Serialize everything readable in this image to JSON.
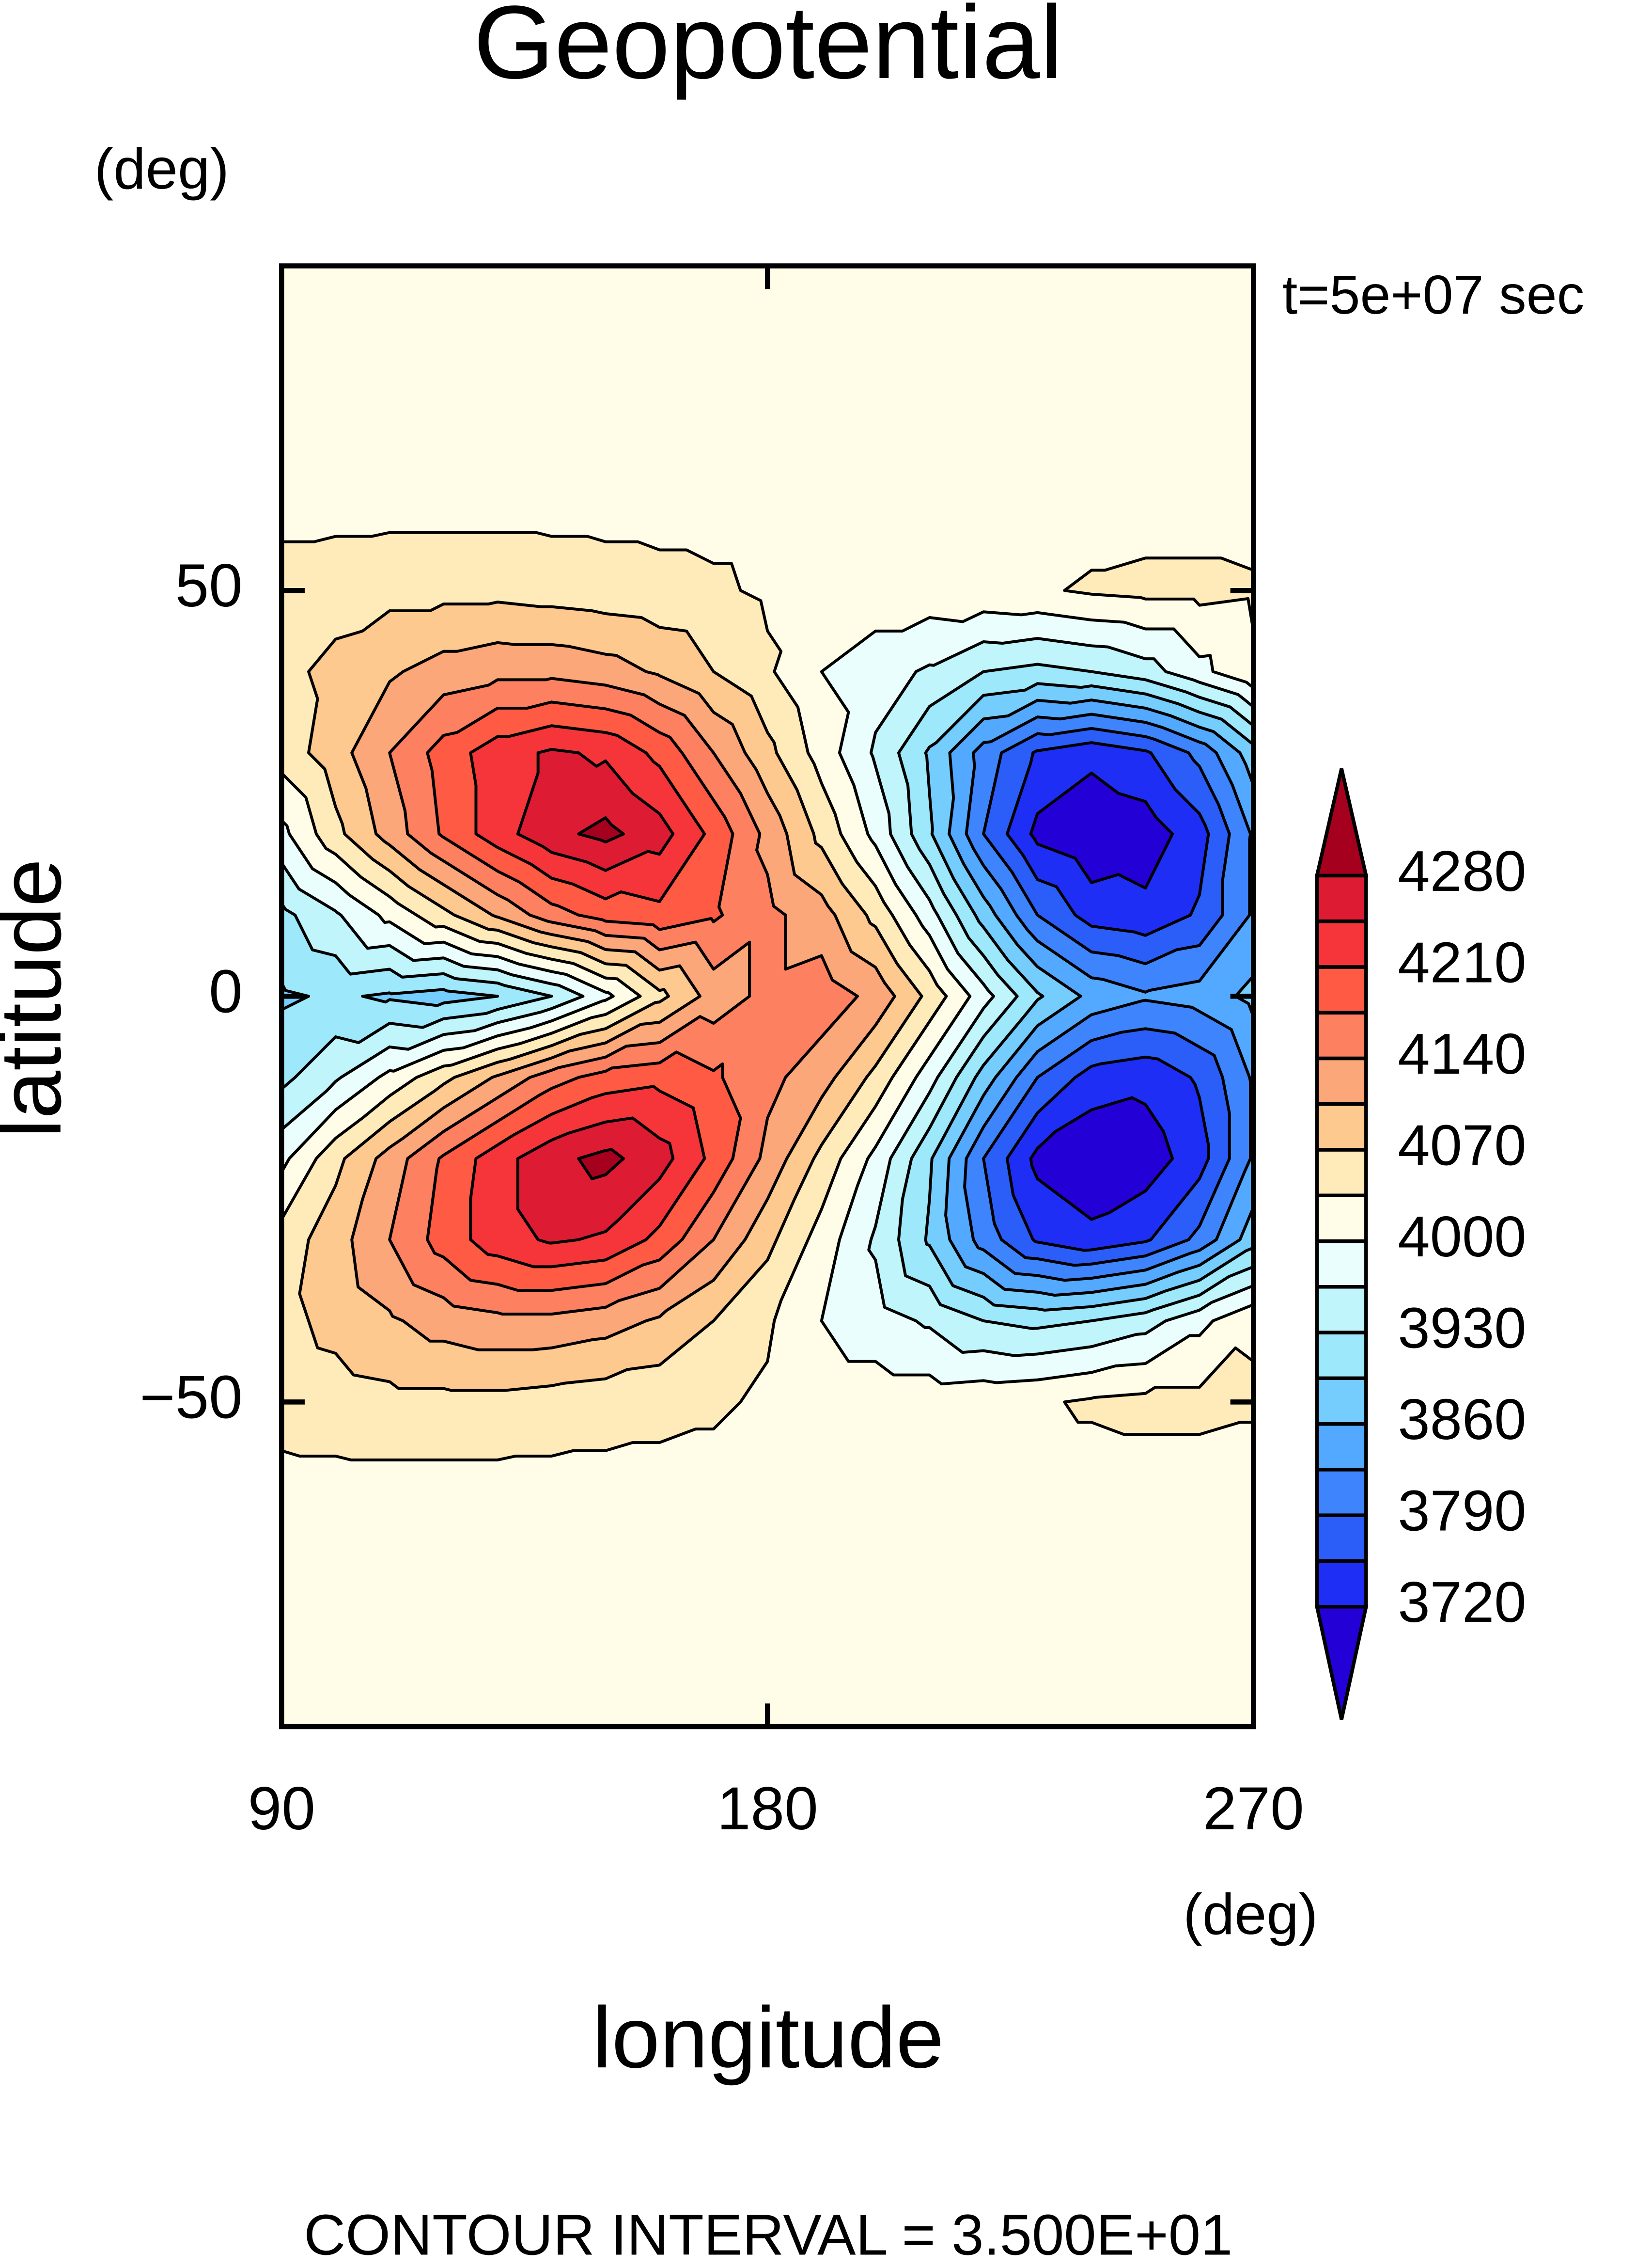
{
  "chart_data": {
    "type": "contour",
    "title": "Geopotential",
    "y_units": "(deg)",
    "x_units": "(deg)",
    "xlabel": "longitude",
    "ylabel": "latitude",
    "annotation": "t=5e+07 sec",
    "footer": "CONTOUR INTERVAL = 3.500E+01",
    "xlim": [
      90,
      270
    ],
    "ylim": [
      -90,
      90
    ],
    "xticks": [
      90,
      180,
      270
    ],
    "yticks": [
      {
        "value": -50,
        "label": "−50"
      },
      0,
      50
    ],
    "levels": [
      3720,
      3755,
      3790,
      3825,
      3860,
      3895,
      3930,
      3965,
      4000,
      4035,
      4070,
      4105,
      4140,
      4175,
      4210,
      4245,
      4280
    ],
    "colors": [
      "#2300d5",
      "#1e2ef5",
      "#2b5df8",
      "#3e84fc",
      "#53a8ff",
      "#75cdfe",
      "#9de8fb",
      "#bff5fb",
      "#eafffd",
      "#fffde7",
      "#feebb9",
      "#fdc98f",
      "#fca779",
      "#fd8060",
      "#ff5a43",
      "#f5353a",
      "#dd1c34",
      "#a6001f"
    ],
    "colorbar_ticks": [
      3720,
      3790,
      3860,
      3930,
      4000,
      4070,
      4140,
      4210,
      4280
    ],
    "lon": [
      90,
      100,
      110,
      120,
      130,
      140,
      150,
      160,
      170,
      180,
      190,
      200,
      210,
      220,
      230,
      240,
      250,
      260,
      270
    ],
    "lat": [
      -90,
      -80,
      -70,
      -60,
      -50,
      -40,
      -30,
      -20,
      -10,
      0,
      10,
      20,
      30,
      40,
      50,
      60,
      70,
      80,
      90
    ],
    "z": [
      [
        4020,
        4020,
        4020,
        4020,
        4020,
        4020,
        4020,
        4020,
        4020,
        4020,
        4020,
        4020,
        4020,
        4020,
        4020,
        4020,
        4020,
        4020,
        4020
      ],
      [
        4020,
        4020,
        4020,
        4020,
        4020,
        4020,
        4020,
        4020,
        4020,
        4020,
        4020,
        4020,
        4020,
        4020,
        4020,
        4020,
        4020,
        4020,
        4020
      ],
      [
        4020,
        4020,
        4020,
        4020,
        4020,
        4020,
        4020,
        4020,
        4020,
        4020,
        4020,
        4020,
        4020,
        4020,
        4020,
        4020,
        4020,
        4020,
        4020
      ],
      [
        4025,
        4025,
        4025,
        4025,
        4025,
        4025,
        4025,
        4025,
        4025,
        4025,
        4020,
        4020,
        4020,
        4020,
        4020,
        4020,
        4020,
        4020,
        4020
      ],
      [
        4050,
        4055,
        4060,
        4060,
        4060,
        4055,
        4050,
        4045,
        4040,
        4030,
        4020,
        4020,
        4020,
        4025,
        4030,
        4040,
        4045,
        4045,
        4040
      ],
      [
        4060,
        4080,
        4100,
        4120,
        4130,
        4130,
        4120,
        4100,
        4070,
        4040,
        4000,
        3980,
        3960,
        3930,
        3920,
        3930,
        3950,
        3990,
        4030
      ],
      [
        4050,
        4090,
        4140,
        4190,
        4230,
        4250,
        4240,
        4200,
        4140,
        4080,
        4020,
        3960,
        3890,
        3810,
        3750,
        3730,
        3750,
        3800,
        3880
      ],
      [
        3990,
        4060,
        4120,
        4180,
        4230,
        4270,
        4290,
        4260,
        4200,
        4130,
        4060,
        3990,
        3900,
        3790,
        3710,
        3690,
        3700,
        3740,
        3830
      ],
      [
        3920,
        3960,
        4010,
        4060,
        4110,
        4160,
        4190,
        4200,
        4180,
        4150,
        4120,
        4060,
        3980,
        3880,
        3790,
        3740,
        3730,
        3760,
        3830
      ],
      [
        3890,
        3900,
        3890,
        3880,
        3895,
        3930,
        3990,
        4060,
        4120,
        4150,
        4160,
        4130,
        4060,
        3980,
        3900,
        3850,
        3830,
        3840,
        3870
      ],
      [
        3920,
        3960,
        4010,
        4060,
        4110,
        4160,
        4190,
        4200,
        4180,
        4150,
        4120,
        4060,
        3980,
        3880,
        3790,
        3740,
        3730,
        3760,
        3830
      ],
      [
        3990,
        4060,
        4120,
        4180,
        4230,
        4270,
        4290,
        4260,
        4200,
        4130,
        4060,
        3990,
        3900,
        3790,
        3710,
        3690,
        3700,
        3740,
        3830
      ],
      [
        4050,
        4090,
        4140,
        4190,
        4230,
        4250,
        4240,
        4200,
        4140,
        4080,
        4020,
        3960,
        3890,
        3810,
        3750,
        3730,
        3750,
        3800,
        3880
      ],
      [
        4060,
        4080,
        4100,
        4120,
        4130,
        4130,
        4120,
        4100,
        4070,
        4040,
        4000,
        3980,
        3960,
        3930,
        3920,
        3930,
        3950,
        3990,
        4030
      ],
      [
        4050,
        4055,
        4060,
        4060,
        4060,
        4055,
        4050,
        4045,
        4040,
        4030,
        4020,
        4020,
        4020,
        4025,
        4030,
        4040,
        4045,
        4045,
        4040
      ],
      [
        4025,
        4025,
        4025,
        4025,
        4025,
        4025,
        4025,
        4025,
        4025,
        4025,
        4020,
        4020,
        4020,
        4020,
        4020,
        4020,
        4020,
        4020,
        4020
      ],
      [
        4020,
        4020,
        4020,
        4020,
        4020,
        4020,
        4020,
        4020,
        4020,
        4020,
        4020,
        4020,
        4020,
        4020,
        4020,
        4020,
        4020,
        4020,
        4020
      ],
      [
        4020,
        4020,
        4020,
        4020,
        4020,
        4020,
        4020,
        4020,
        4020,
        4020,
        4020,
        4020,
        4020,
        4020,
        4020,
        4020,
        4020,
        4020,
        4020
      ],
      [
        4020,
        4020,
        4020,
        4020,
        4020,
        4020,
        4020,
        4020,
        4020,
        4020,
        4020,
        4020,
        4020,
        4020,
        4020,
        4020,
        4020,
        4020,
        4020
      ]
    ]
  }
}
